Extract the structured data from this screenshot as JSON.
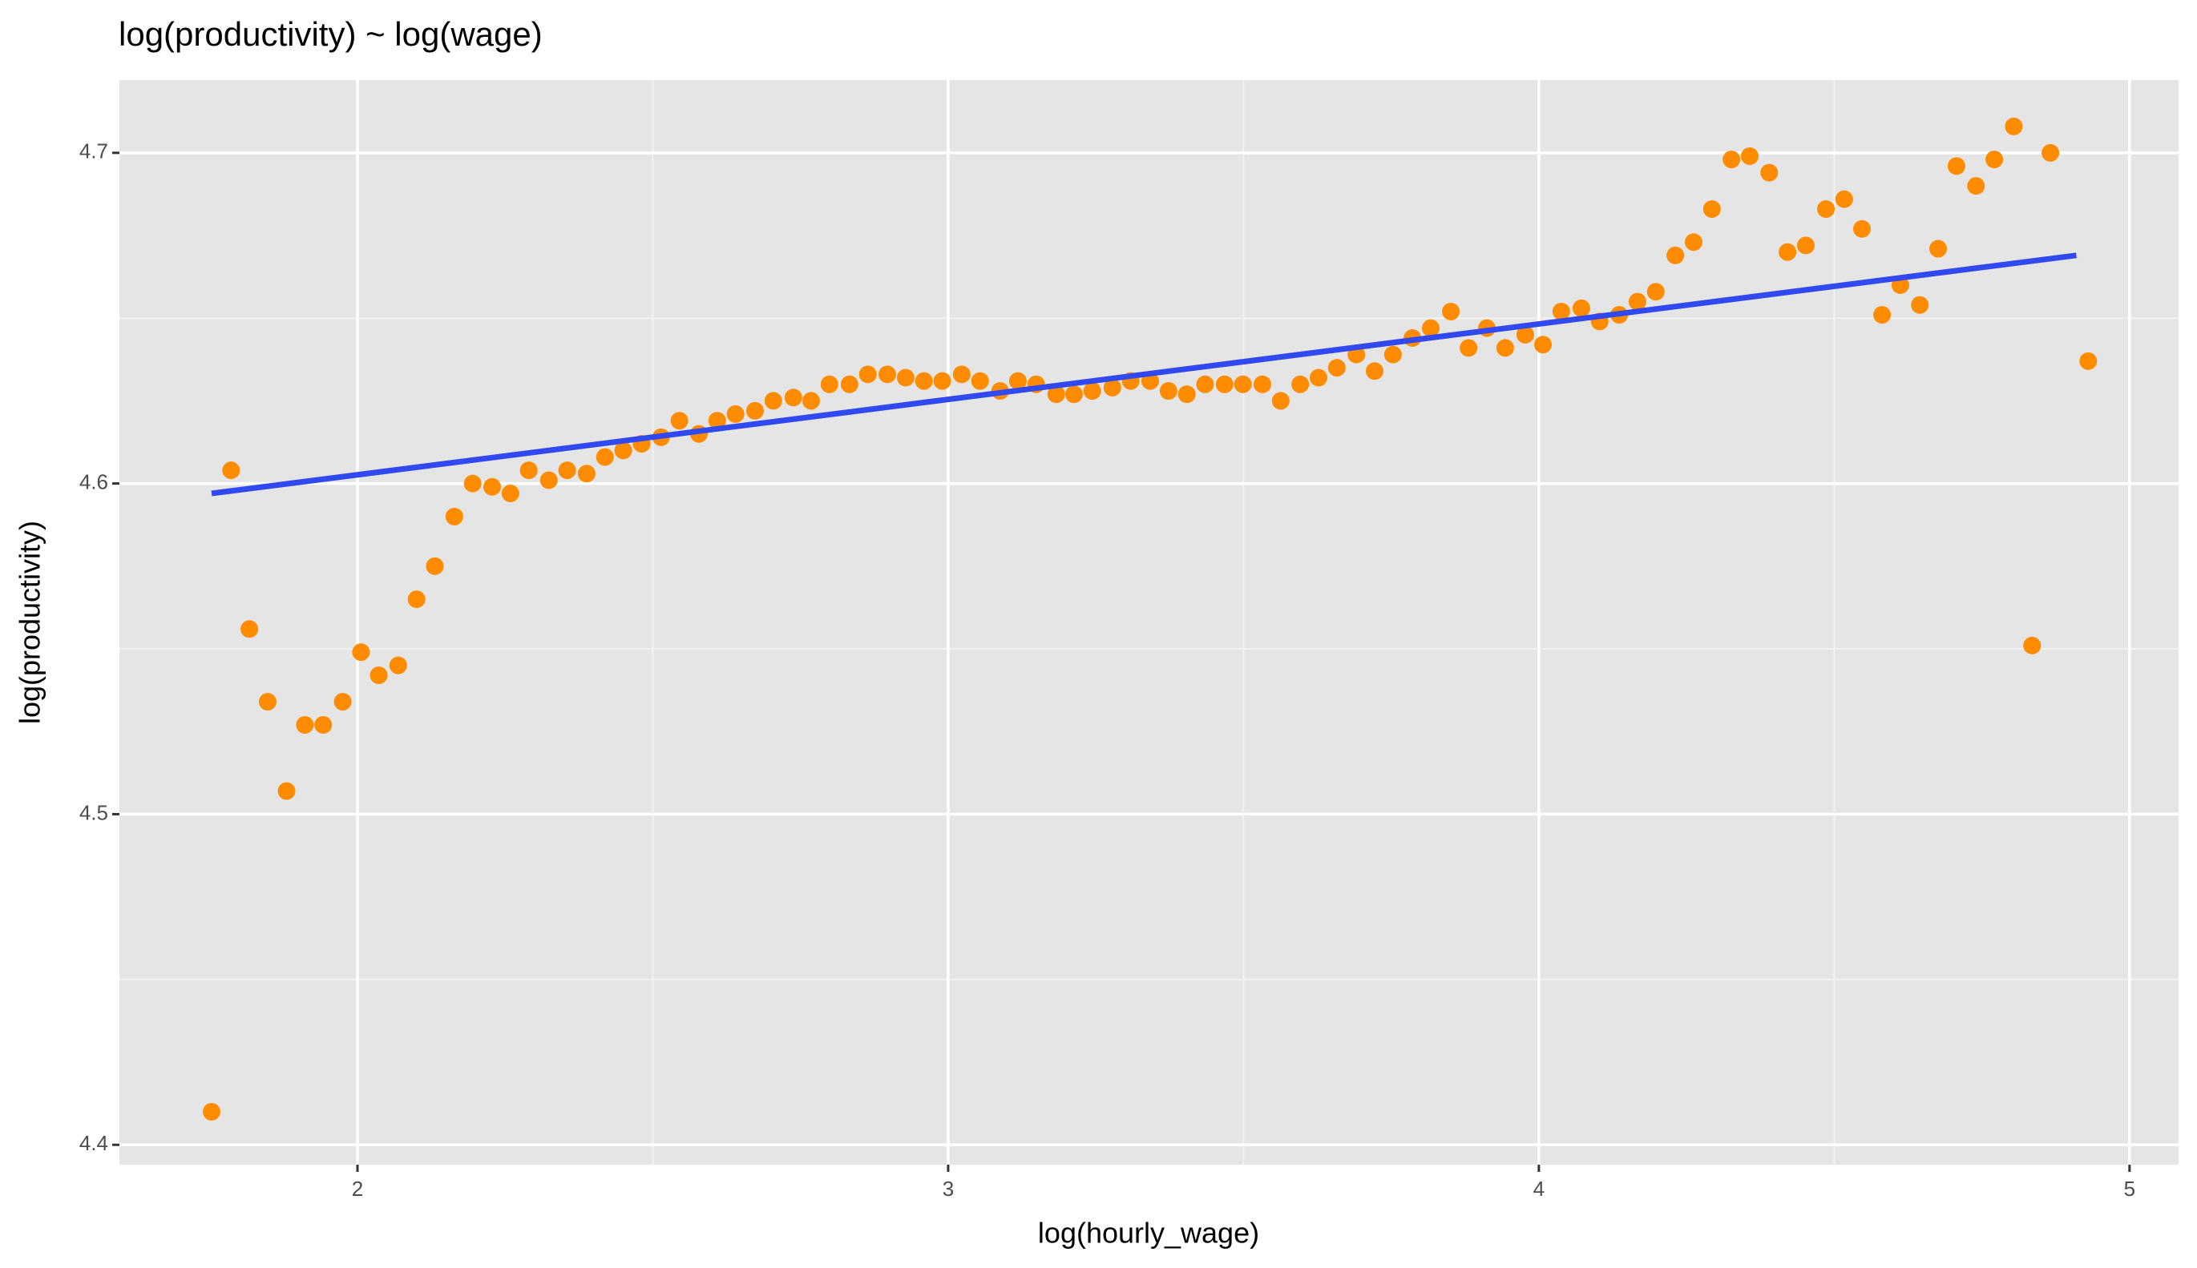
{
  "chart_data": {
    "type": "scatter",
    "title": "log(productivity) ~ log(wage)",
    "x_label": "log(hourly_wage)",
    "y_label": "log(productivity)",
    "xlim": [
      1.597,
      5.083
    ],
    "ylim": [
      4.394,
      4.722
    ],
    "xticks": [
      2,
      3,
      4,
      5
    ],
    "yticks": [
      4.4,
      4.5,
      4.6,
      4.7
    ],
    "x_minor_grid": [
      2.5,
      3.5,
      4.5
    ],
    "y_minor_grid": [
      4.45,
      4.55,
      4.65
    ],
    "grid": true,
    "color": "#ff8c00",
    "x": [
      1.753,
      1.786,
      1.817,
      1.848,
      1.88,
      1.911,
      1.942,
      1.975,
      2.006,
      2.036,
      2.069,
      2.1,
      2.131,
      2.164,
      2.195,
      2.228,
      2.259,
      2.29,
      2.324,
      2.355,
      2.388,
      2.419,
      2.45,
      2.481,
      2.514,
      2.545,
      2.578,
      2.609,
      2.64,
      2.673,
      2.704,
      2.738,
      2.768,
      2.799,
      2.833,
      2.864,
      2.897,
      2.928,
      2.959,
      2.99,
      3.023,
      3.054,
      3.088,
      3.118,
      3.149,
      3.183,
      3.213,
      3.244,
      3.278,
      3.309,
      3.342,
      3.373,
      3.404,
      3.435,
      3.468,
      3.499,
      3.532,
      3.563,
      3.596,
      3.627,
      3.658,
      3.691,
      3.722,
      3.753,
      3.786,
      3.817,
      3.851,
      3.881,
      3.912,
      3.943,
      3.977,
      4.007,
      4.038,
      4.072,
      4.103,
      4.136,
      4.167,
      4.198,
      4.231,
      4.262,
      4.293,
      4.326,
      4.357,
      4.39,
      4.421,
      4.452,
      4.486,
      4.517,
      4.547,
      4.581,
      4.612,
      4.645,
      4.676,
      4.707,
      4.74,
      4.771,
      4.804,
      4.835,
      4.866,
      4.93
    ],
    "values": [
      4.41,
      4.604,
      4.556,
      4.534,
      4.507,
      4.527,
      4.527,
      4.534,
      4.549,
      4.542,
      4.545,
      4.565,
      4.575,
      4.59,
      4.6,
      4.599,
      4.597,
      4.604,
      4.601,
      4.604,
      4.603,
      4.608,
      4.61,
      4.612,
      4.614,
      4.619,
      4.615,
      4.619,
      4.621,
      4.622,
      4.625,
      4.626,
      4.625,
      4.63,
      4.63,
      4.633,
      4.633,
      4.632,
      4.631,
      4.631,
      4.633,
      4.631,
      4.628,
      4.631,
      4.63,
      4.627,
      4.627,
      4.628,
      4.629,
      4.631,
      4.631,
      4.628,
      4.627,
      4.63,
      4.63,
      4.63,
      4.63,
      4.625,
      4.63,
      4.632,
      4.635,
      4.639,
      4.634,
      4.639,
      4.644,
      4.647,
      4.652,
      4.641,
      4.647,
      4.641,
      4.645,
      4.642,
      4.652,
      4.653,
      4.649,
      4.651,
      4.655,
      4.658,
      4.669,
      4.673,
      4.683,
      4.698,
      4.699,
      4.694,
      4.67,
      4.672,
      4.683,
      4.686,
      4.677,
      4.651,
      4.66,
      4.654,
      4.671,
      4.696,
      4.69,
      4.698,
      4.708,
      4.551,
      4.7,
      4.637
    ],
    "trend_line": {
      "x": [
        1.753,
        4.91
      ],
      "values": [
        4.597,
        4.669
      ],
      "color": "#3049f0"
    }
  }
}
